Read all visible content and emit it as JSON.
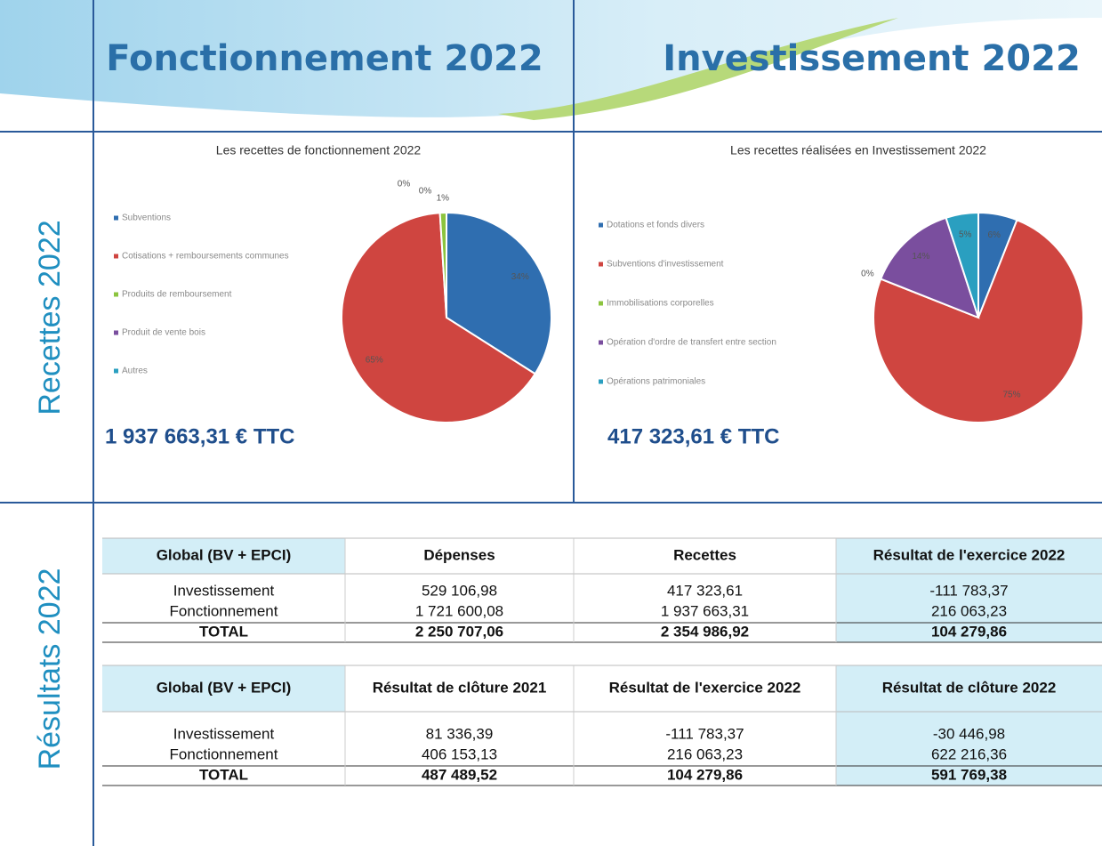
{
  "header": {
    "left_title": "Fonctionnement 2022",
    "right_title": "Investissement 2022"
  },
  "row_labels": {
    "top": "Recettes 2022",
    "bottom": "Résultats 2022"
  },
  "chart_data": [
    {
      "type": "pie",
      "title": "Les recettes de fonctionnement 2022",
      "categories": [
        "Subventions",
        "Cotisations + remboursements communes",
        "Produits de remboursement",
        "Produit de vente bois",
        "Autres"
      ],
      "values": [
        34,
        65,
        1,
        0,
        0
      ],
      "value_labels": [
        "34%",
        "65%",
        "1%",
        "0%",
        "0%"
      ],
      "colors": [
        "#2f6eb0",
        "#cf4540",
        "#8cc43f",
        "#7a4e9e",
        "#2a9fc0"
      ],
      "total": "1 937 663,31 € TTC"
    },
    {
      "type": "pie",
      "title": "Les recettes réalisées en Investissement 2022",
      "categories": [
        "Dotations et fonds divers",
        "Subventions d'investissement",
        "Immobilisations corporelles",
        "Opération d'ordre de transfert entre section",
        "Opérations patrimoniales"
      ],
      "values": [
        6,
        75,
        0,
        14,
        5
      ],
      "value_labels": [
        "6%",
        "75%",
        "0%",
        "14%",
        "5%"
      ],
      "colors": [
        "#2f6eb0",
        "#cf4540",
        "#8cc43f",
        "#7a4e9e",
        "#2a9fc0"
      ],
      "total": "417 323,61 € TTC"
    }
  ],
  "tables": [
    {
      "header": [
        "Global (BV + EPCI)",
        "Dépenses",
        "Recettes",
        "Résultat de l'exercice 2022"
      ],
      "rows": [
        [
          "Investissement",
          "529 106,98",
          "417 323,61",
          "-111 783,37"
        ],
        [
          "Fonctionnement",
          "1 721 600,08",
          "1 937 663,31",
          "216 063,23"
        ],
        [
          "TOTAL",
          "2 250 707,06",
          "2 354 986,92",
          "104 279,86"
        ]
      ]
    },
    {
      "header": [
        "Global (BV + EPCI)",
        "Résultat de clôture 2021",
        "Résultat de l'exercice 2022",
        "Résultat de clôture 2022"
      ],
      "rows": [
        [
          "Investissement",
          "81 336,39",
          "-111 783,37",
          "-30 446,98"
        ],
        [
          "Fonctionnement",
          "406 153,13",
          "216 063,23",
          "622 216,36"
        ],
        [
          "TOTAL",
          "487 489,52",
          "104 279,86",
          "591 769,38"
        ]
      ]
    }
  ]
}
